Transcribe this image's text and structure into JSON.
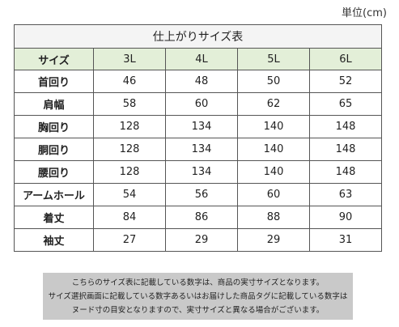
{
  "unit": "単位(cm)",
  "table": {
    "title": "仕上がりサイズ表",
    "header_label": "サイズ",
    "sizes": [
      "3L",
      "4L",
      "5L",
      "6L"
    ],
    "rows": [
      {
        "label": "首回り",
        "values": [
          "46",
          "48",
          "50",
          "52"
        ]
      },
      {
        "label": "肩幅",
        "values": [
          "58",
          "60",
          "62",
          "65"
        ]
      },
      {
        "label": "胸回り",
        "values": [
          "128",
          "134",
          "140",
          "148"
        ]
      },
      {
        "label": "胴回り",
        "values": [
          "128",
          "134",
          "140",
          "148"
        ]
      },
      {
        "label": "腰回り",
        "values": [
          "128",
          "134",
          "140",
          "148"
        ]
      },
      {
        "label": "アームホール",
        "values": [
          "54",
          "56",
          "60",
          "63"
        ]
      },
      {
        "label": "着丈",
        "values": [
          "84",
          "86",
          "88",
          "90"
        ]
      },
      {
        "label": "袖丈",
        "values": [
          "27",
          "29",
          "29",
          "31"
        ]
      }
    ]
  },
  "notes": [
    "こちらのサイズ表に記載している数字は、商品の実寸サイズとなります。",
    "サイズ選択画面に記載している数字あるいはお届けした商品タグに記載している数字は",
    "ヌード寸の目安となりますので、実寸サイズと異なる場合がございます。"
  ],
  "colors": {
    "header_bg": "#e3efd8",
    "title_bg": "#f4f4f4",
    "note_bg": "#c9c9c9",
    "border": "#555555"
  }
}
